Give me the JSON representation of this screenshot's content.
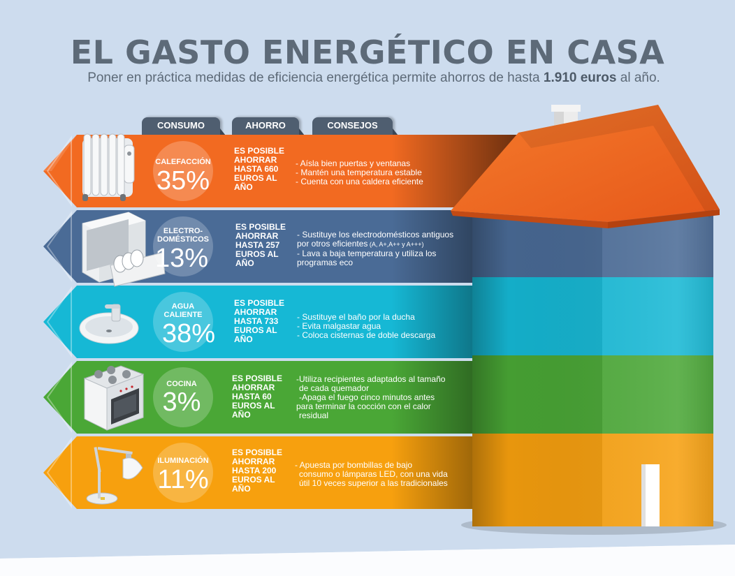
{
  "header": {
    "title": "EL GASTO ENERGÉTICO EN CASA",
    "subtitle_pre": "Poner en práctica medidas de eficiencia energética permite ahorros de hasta ",
    "subtitle_amount": "1.910 euros",
    "subtitle_post": " al año."
  },
  "tabs": [
    "CONSUMO",
    "AHORRO",
    "CONSEJOS"
  ],
  "colors": {
    "calefaccion": "#f26a21",
    "electrodomesticos": "#4a6b96",
    "agua": "#16b8d5",
    "cocina": "#4aa736",
    "iluminacion": "#f7a00e",
    "roof": "#f26a21",
    "background": "#ccdcef"
  },
  "rows": [
    {
      "id": "calefaccion",
      "category": "CALEFACCIÓN",
      "category_line2": "",
      "percent": "35%",
      "saving": [
        "ES POSIBLE",
        "AHORRAR",
        "HASTA 660",
        "EUROS AL",
        "AÑO"
      ],
      "tips": [
        "- Aísla bien puertas y ventanas",
        "- Mantén una temperatura estable",
        "- Cuenta con una caldera eficiente"
      ],
      "icon": "radiator-icon"
    },
    {
      "id": "electrodomesticos",
      "category": "ELECTRO-",
      "category_line2": "DOMÉSTICOS",
      "percent": "13%",
      "saving": [
        "ES POSIBLE",
        "AHORRAR",
        "HASTA 257",
        "EUROS AL",
        "AÑO"
      ],
      "tips": [
        "- Sustituye los electrodomésticos antiguos",
        "  por otros eficientes",
        "- Lava a baja temperatura y utiliza los",
        "  programas eco"
      ],
      "tips_small": " (A, A+,A++ y A+++)",
      "icon": "dishwasher-icon"
    },
    {
      "id": "agua",
      "category": "AGUA",
      "category_line2": "CALIENTE",
      "percent": "38%",
      "saving": [
        "ES POSIBLE",
        "AHORRAR",
        "HASTA 733",
        "EUROS AL",
        "AÑO"
      ],
      "tips": [
        "- Sustituye el baño por la ducha",
        "- Evita malgastar agua",
        "- Coloca cisternas de doble descarga"
      ],
      "icon": "sink-icon"
    },
    {
      "id": "cocina",
      "category": "COCINA",
      "category_line2": "",
      "percent": "3%",
      "saving": [
        "ES POSIBLE",
        "AHORRAR",
        "HASTA 60",
        "EUROS AL",
        "AÑO"
      ],
      "tips": [
        "-Utiliza recipientes adaptados al tamaño",
        "  de cada quemador",
        "  -Apaga el fuego cinco minutos antes",
        "para terminar la cocción con el calor",
        "  residual"
      ],
      "icon": "stove-icon"
    },
    {
      "id": "iluminacion",
      "category": "ILUMINACIÓN",
      "category_line2": "",
      "percent": "11%",
      "saving": [
        "ES POSIBLE",
        "AHORRAR",
        "HASTA 200",
        "EUROS AL",
        "AÑO"
      ],
      "tips": [
        "- Apuesta por bombillas de bajo",
        "  consumo o lámparas LED, con una vida",
        "  útil 10 veces superior a las tradicionales"
      ],
      "icon": "lamp-icon"
    }
  ]
}
